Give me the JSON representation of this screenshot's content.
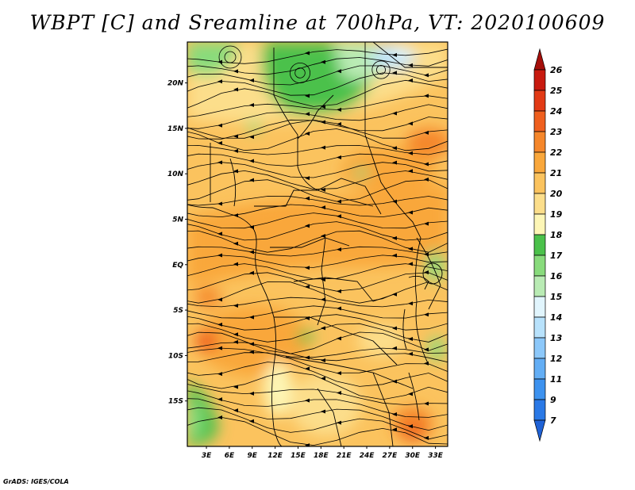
{
  "title": "WBPT [C] and Sreamline at 700hPa, VT: 2020100609",
  "credit": "GrADS: IGES/COLA",
  "map": {
    "lat_labels": [
      "20N",
      "15N",
      "10N",
      "5N",
      "EQ",
      "5S",
      "10S",
      "15S"
    ],
    "lat_values": [
      20,
      15,
      10,
      5,
      0,
      -5,
      -10,
      -15
    ],
    "lon_labels": [
      "3E",
      "6E",
      "9E",
      "12E",
      "15E",
      "18E",
      "21E",
      "24E",
      "27E",
      "30E",
      "33E"
    ],
    "lon_values": [
      3,
      6,
      9,
      12,
      15,
      18,
      21,
      24,
      27,
      30,
      33
    ],
    "lat_range": [
      -20,
      24.5
    ],
    "lon_range": [
      0.5,
      34.6
    ]
  },
  "colorbar": {
    "labels": [
      "7",
      "9",
      "11",
      "12",
      "13",
      "14",
      "15",
      "16",
      "17",
      "18",
      "19",
      "20",
      "21",
      "22",
      "23",
      "24",
      "25",
      "26"
    ],
    "colors": [
      "#1f62d6",
      "#2a79e6",
      "#3d92ef",
      "#63aef5",
      "#8cc8fa",
      "#b8e2fc",
      "#e1f5fd",
      "#b9ebb4",
      "#88db7c",
      "#4bc14b",
      "#fdf6b6",
      "#fcde8b",
      "#fbc35e",
      "#f9a73b",
      "#f5862a",
      "#ef5f1e",
      "#e23a15",
      "#c81a0f",
      "#a50f0a"
    ]
  }
}
